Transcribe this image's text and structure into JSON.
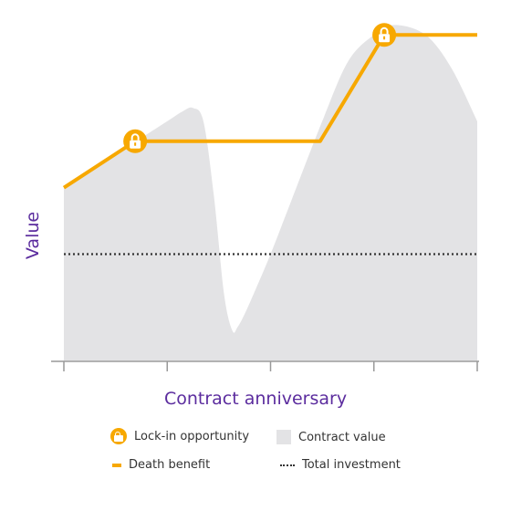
{
  "colors": {
    "death_benefit": "#F7A800",
    "contract_value": "#E3E3E5",
    "total_investment": "#333333",
    "axis_label": "#5B2C9E",
    "axis_line": "#999999"
  },
  "chart_data": {
    "type": "area",
    "xlabel": "Contract anniversary",
    "ylabel": "Value",
    "xlim": [
      0,
      4
    ],
    "ylim": [
      0,
      100
    ],
    "x_ticks": [
      0,
      1,
      2,
      3,
      4
    ],
    "tick_labels_shown": false,
    "series": [
      {
        "name": "Contract value",
        "style": "filled area",
        "x": [
          0,
          0.4,
          0.75,
          1.0,
          1.15,
          1.25,
          1.35,
          1.45,
          1.55,
          1.63,
          1.68,
          1.75,
          1.85,
          2.0,
          2.2,
          2.5,
          2.75,
          3.0,
          3.2,
          3.5,
          3.75,
          4.0
        ],
        "values": [
          52,
          60,
          67,
          72,
          75,
          76,
          72,
          50,
          20,
          9,
          10,
          14,
          21,
          32,
          48,
          72,
          90,
          98,
          101,
          98,
          88,
          72
        ]
      },
      {
        "name": "Death benefit",
        "style": "line",
        "x": [
          0,
          0.69,
          2.48,
          3.1,
          4.0
        ],
        "values": [
          52,
          66,
          66,
          98,
          98
        ]
      },
      {
        "name": "Total investment",
        "style": "dotted line",
        "x": [
          0,
          4
        ],
        "values": [
          32,
          32
        ]
      },
      {
        "name": "Lock-in opportunity",
        "style": "marker",
        "x": [
          0.69,
          3.1
        ],
        "values": [
          66,
          98
        ]
      }
    ],
    "legend": {
      "placement": "bottom",
      "entries": [
        {
          "label": "Lock-in opportunity",
          "swatch": "lock-icon"
        },
        {
          "label": "Contract value",
          "swatch": "area-square"
        },
        {
          "label": "Death benefit",
          "swatch": "line-dash"
        },
        {
          "label": "Total investment",
          "swatch": "dotted-line"
        }
      ]
    }
  }
}
